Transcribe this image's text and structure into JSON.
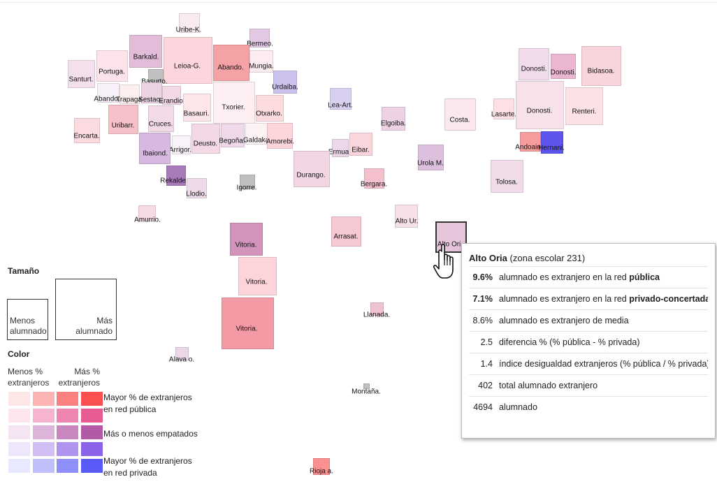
{
  "zones": [
    {
      "label": "Uribe-K.",
      "color": "#f8eaf0"
    },
    {
      "label": "Bermeo.",
      "color": "#e3c8e4"
    },
    {
      "label": "Barkald.",
      "color": "#e2bcd8"
    },
    {
      "label": "Leioa-G.",
      "color": "#fcd6dc"
    },
    {
      "label": "Abando.",
      "color": "#f5a2a7"
    },
    {
      "label": "Mungia.",
      "color": "#fcebef"
    },
    {
      "label": "Santurt.",
      "color": "#f4e0ec"
    },
    {
      "label": "Portuga.",
      "color": "#fce4ea"
    },
    {
      "label": "Basurto.",
      "color": "#c0c0c0"
    },
    {
      "label": "Urdaiba.",
      "color": "#cdc1ee"
    },
    {
      "label": "Abando.",
      "color": "#f8f0f8"
    },
    {
      "label": "Trapaga.",
      "color": "#fdeff0"
    },
    {
      "label": "Sestao.",
      "color": "#ecd3e4"
    },
    {
      "label": "Erandio.",
      "color": "#f3d9e6"
    },
    {
      "label": "Basauri.",
      "color": "#fde6ea"
    },
    {
      "label": "Txorier.",
      "color": "#fef0f2"
    },
    {
      "label": "Otxarko.",
      "color": "#fddcdf"
    },
    {
      "label": "Uribarr.",
      "color": "#f6c0c8"
    },
    {
      "label": "Cruces.",
      "color": "#f2dbe6"
    },
    {
      "label": "Encarta.",
      "color": "#fbdbe0"
    },
    {
      "label": "Arrigor.",
      "color": "#f8f2fa"
    },
    {
      "label": "Deusto.",
      "color": "#f3d8e6"
    },
    {
      "label": "Begoña.",
      "color": "#efd9ea"
    },
    {
      "label": "Galdaka.",
      "color": "#fdf3f4"
    },
    {
      "label": "Amorebi.",
      "color": "#fcd5db"
    },
    {
      "label": "Ibaiond.",
      "color": "#d6b8e0"
    },
    {
      "label": "Rekalde.",
      "color": "#a97ab9"
    },
    {
      "label": "Llodio.",
      "color": "#eedbea"
    },
    {
      "label": "Igorre.",
      "color": "#c0c0c0"
    },
    {
      "label": "Amurrio.",
      "color": "#f6dbe6"
    },
    {
      "label": "Lea-Art.",
      "color": "#d9d0f0"
    },
    {
      "label": "Elgoiba.",
      "color": "#ecd2e4"
    },
    {
      "label": "Ermua.",
      "color": "#ecd6ea"
    },
    {
      "label": "Eibar.",
      "color": "#fbd5dc"
    },
    {
      "label": "Durango.",
      "color": "#f3d6e4"
    },
    {
      "label": "Bergara.",
      "color": "#f3c0cc"
    },
    {
      "label": "Urola M.",
      "color": "#dcc0de"
    },
    {
      "label": "Costa.",
      "color": "#fae8ec"
    },
    {
      "label": "Alto Ur.",
      "color": "#f6e0ea"
    },
    {
      "label": "Arrasat.",
      "color": "#f6c8d2"
    },
    {
      "label": "Alto Ori.",
      "color": "#e6c4dc"
    },
    {
      "label": "Donosti.",
      "color": "#f1dcec"
    },
    {
      "label": "Donosti.",
      "color": "#ebb6d2"
    },
    {
      "label": "Bidasoa.",
      "color": "#f8d4dc"
    },
    {
      "label": "Lasarte.",
      "color": "#fce0e4"
    },
    {
      "label": "Donosti.",
      "color": "#f7e1ea"
    },
    {
      "label": "Renteri.",
      "color": "#fce1e5"
    },
    {
      "label": "Andoain.",
      "color": "#f79c9c"
    },
    {
      "label": "Hernani.",
      "color": "#5e54ee"
    },
    {
      "label": "Tolosa.",
      "color": "#f1dcea"
    },
    {
      "label": "Vitoria.",
      "color": "#d394bc"
    },
    {
      "label": "Vitoria.",
      "color": "#fcd4da"
    },
    {
      "label": "Vitoria.",
      "color": "#f49aa4"
    },
    {
      "label": "Llanada.",
      "color": "#efc2d2"
    },
    {
      "label": "Alava o.",
      "color": "#ecd6ea"
    },
    {
      "label": "Montaña.",
      "color": "#c0c0c0"
    },
    {
      "label": "Rioja a.",
      "color": "#fa9090"
    }
  ],
  "legend": {
    "size_title": "Tamaño",
    "size_small": "Menos alumnado",
    "size_large": "Más alumnado",
    "color_title": "Color",
    "col_less": "Menos % extranjeros",
    "col_more": "Más % extranjeros",
    "row_public": "Mayor % de extranjeros en red pública",
    "row_tied": "Más o menos empatados",
    "row_private": "Mayor % de extranjeros en red privada",
    "swatches": [
      [
        "#fde6e6",
        "#fdb3b3",
        "#fb8080",
        "#fb5050"
      ],
      [
        "#fde6ef",
        "#f6b4cf",
        "#ef86b2",
        "#e85a92"
      ],
      [
        "#f5e5f2",
        "#dfb4d9",
        "#c987c1",
        "#b25aa8"
      ],
      [
        "#eee7fb",
        "#d2bef5",
        "#b093ee",
        "#8a63e8"
      ],
      [
        "#e8e8fe",
        "#bfbffc",
        "#8f8ff9",
        "#5a5af8"
      ]
    ]
  },
  "tooltip": {
    "zone_name": "Alto Oria",
    "zone_suffix": "(zona escolar 231)",
    "rows": [
      {
        "value": "9.6%",
        "text_pre": "alumnado es extranjero en la red ",
        "text_bold": "pública"
      },
      {
        "value": "7.1%",
        "text_pre": "alumnado es extranjero en la red ",
        "text_bold": "privado-concertada"
      },
      {
        "value": "8.6%",
        "text_pre": "alumnado es extranjero de media",
        "text_bold": ""
      },
      {
        "value": "2.5",
        "text_pre": "diferencia % (% pública - % privada)",
        "text_bold": ""
      },
      {
        "value": "1.4",
        "text_pre": "índice desigualdad extranjeros (% pública / % privada)",
        "text_bold": ""
      },
      {
        "value": "402",
        "text_pre": "total alumnado extranjero",
        "text_bold": ""
      },
      {
        "value": "4694",
        "text_pre": "alumnado",
        "text_bold": ""
      }
    ]
  }
}
